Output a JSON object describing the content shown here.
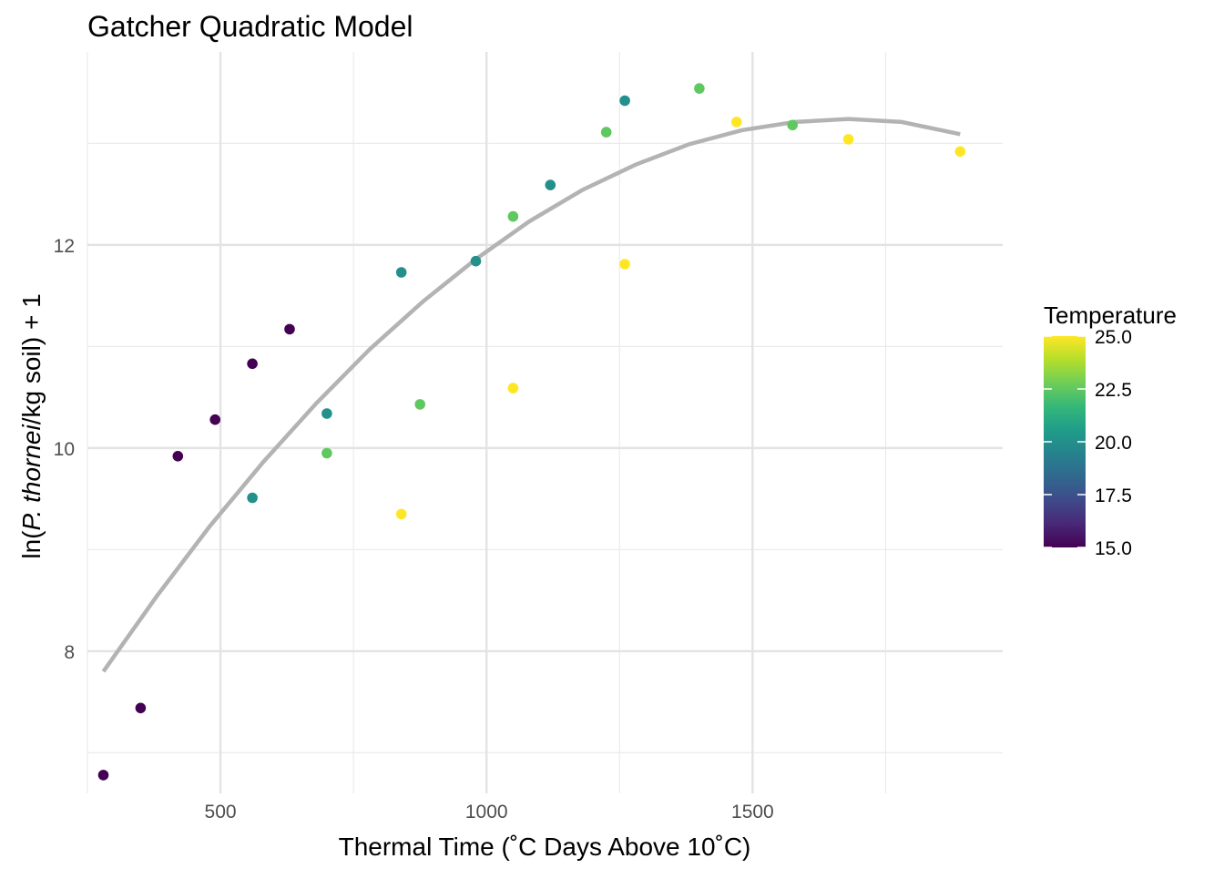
{
  "chart_data": {
    "type": "scatter",
    "title": "Gatcher Quadratic Model",
    "xlabel": "Thermal Time (˚C Days Above 10˚C)",
    "ylabel_parts": [
      "ln(",
      "P. thornei",
      "/kg soil) + 1"
    ],
    "xlim": [
      250,
      1970
    ],
    "ylim": [
      6.6,
      13.9
    ],
    "x_ticks": [
      500,
      1000,
      1500
    ],
    "y_ticks": [
      8,
      10,
      12
    ],
    "grid": true,
    "legend": {
      "title": "Temperature",
      "placement": "right",
      "range": [
        15,
        25
      ],
      "ticks": [
        15.0,
        17.5,
        20.0,
        22.5,
        25.0
      ],
      "tick_labels": [
        "15.0",
        "17.5",
        "20.0",
        "22.5",
        "25.0"
      ],
      "colors": [
        "#440154",
        "#482878",
        "#3e4a89",
        "#31688e",
        "#26828e",
        "#1f9e89",
        "#35b779",
        "#6ece58",
        "#b5de2b",
        "#fde725"
      ]
    },
    "points": [
      {
        "x": 280,
        "y": 6.78,
        "temp": 15
      },
      {
        "x": 350,
        "y": 7.44,
        "temp": 15
      },
      {
        "x": 420,
        "y": 9.92,
        "temp": 15
      },
      {
        "x": 490,
        "y": 10.28,
        "temp": 15
      },
      {
        "x": 560,
        "y": 10.83,
        "temp": 15
      },
      {
        "x": 630,
        "y": 11.17,
        "temp": 15
      },
      {
        "x": 560,
        "y": 9.51,
        "temp": 20
      },
      {
        "x": 700,
        "y": 10.34,
        "temp": 20
      },
      {
        "x": 840,
        "y": 11.73,
        "temp": 20
      },
      {
        "x": 980,
        "y": 11.84,
        "temp": 20
      },
      {
        "x": 1120,
        "y": 12.59,
        "temp": 20
      },
      {
        "x": 1260,
        "y": 13.42,
        "temp": 20
      },
      {
        "x": 700,
        "y": 9.95,
        "temp": 22.5
      },
      {
        "x": 875,
        "y": 10.43,
        "temp": 22.5
      },
      {
        "x": 1050,
        "y": 12.28,
        "temp": 22.5
      },
      {
        "x": 1225,
        "y": 13.11,
        "temp": 22.5
      },
      {
        "x": 1400,
        "y": 13.54,
        "temp": 22.5
      },
      {
        "x": 1575,
        "y": 13.18,
        "temp": 22.5
      },
      {
        "x": 840,
        "y": 9.35,
        "temp": 25
      },
      {
        "x": 1050,
        "y": 10.59,
        "temp": 25
      },
      {
        "x": 1260,
        "y": 11.81,
        "temp": 25
      },
      {
        "x": 1470,
        "y": 13.21,
        "temp": 25
      },
      {
        "x": 1680,
        "y": 13.04,
        "temp": 25
      },
      {
        "x": 1890,
        "y": 12.92,
        "temp": 25
      }
    ],
    "fit_line": {
      "color": "#b3b3b3",
      "x": [
        280,
        380,
        480,
        580,
        680,
        780,
        880,
        980,
        1080,
        1180,
        1280,
        1380,
        1480,
        1580,
        1680,
        1780,
        1890
      ],
      "y": [
        7.8,
        8.54,
        9.23,
        9.86,
        10.44,
        10.97,
        11.44,
        11.86,
        12.23,
        12.54,
        12.79,
        12.99,
        13.13,
        13.21,
        13.24,
        13.21,
        13.09
      ]
    }
  }
}
